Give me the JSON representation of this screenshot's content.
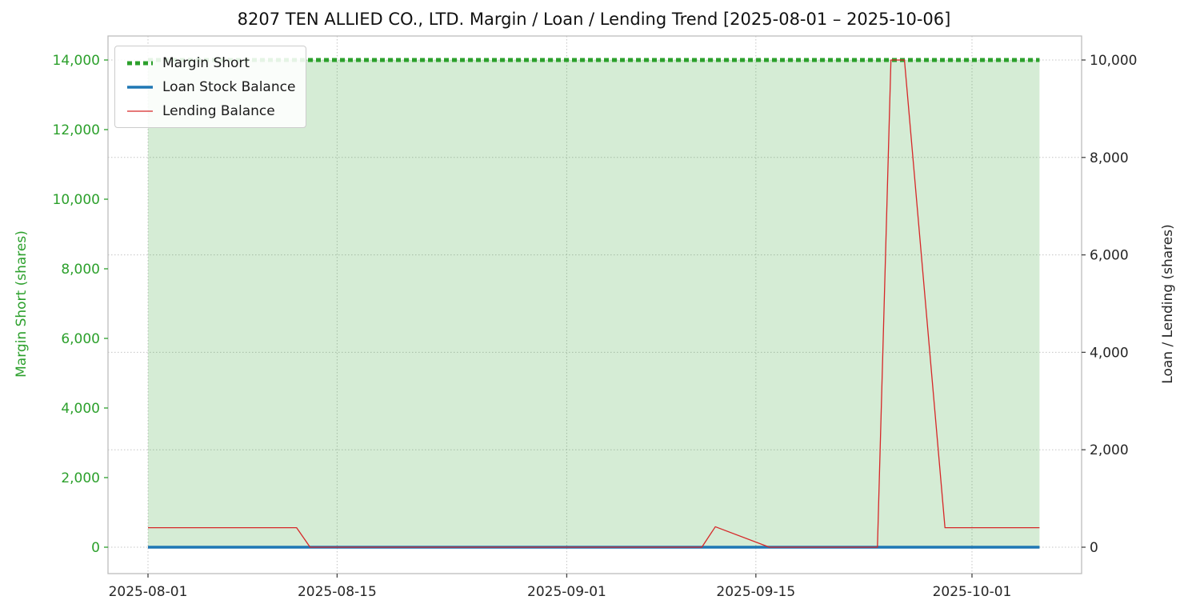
{
  "chart_data": {
    "type": "line",
    "title": "8207 TEN ALLIED CO., LTD. Margin / Loan / Lending Trend [2025-08-01 – 2025-10-06]",
    "x_start": "2025-08-01",
    "x_end": "2025-10-06",
    "x_ticks": [
      "2025-08-01",
      "2025-08-15",
      "2025-09-01",
      "2025-09-15",
      "2025-10-01"
    ],
    "grid": "dotted",
    "legend_position": "upper-left",
    "left_axis": {
      "label": "Margin Short (shares)",
      "color": "#2ca02c",
      "max": 14000,
      "ticks": [
        0,
        2000,
        4000,
        6000,
        8000,
        10000,
        12000,
        14000
      ]
    },
    "right_axis": {
      "label": "Loan / Lending (shares)",
      "color": "#262626",
      "max": 10000,
      "ticks": [
        0,
        2000,
        4000,
        6000,
        8000,
        10000
      ]
    },
    "series": [
      {
        "id": "margin-short",
        "name": "Margin Short",
        "axis": "left",
        "color": "#2ca02c",
        "width": 5,
        "dash": "6 4",
        "fill": true,
        "fill_color": "rgba(44,160,44,0.2)",
        "points": [
          [
            "2025-08-01",
            14000
          ],
          [
            "2025-10-06",
            14000
          ]
        ]
      },
      {
        "id": "loan-stock-balance",
        "name": "Loan Stock Balance",
        "axis": "right",
        "color": "#1f77b4",
        "width": 3.5,
        "points": [
          [
            "2025-08-01",
            0
          ],
          [
            "2025-10-06",
            0
          ]
        ]
      },
      {
        "id": "lending-balance",
        "name": "Lending Balance",
        "axis": "right",
        "color": "#d62728",
        "width": 1.3,
        "points": [
          [
            "2025-08-01",
            400
          ],
          [
            "2025-08-12",
            400
          ],
          [
            "2025-08-13",
            0
          ],
          [
            "2025-09-11",
            0
          ],
          [
            "2025-09-12",
            420
          ],
          [
            "2025-09-16",
            0
          ],
          [
            "2025-09-24",
            0
          ],
          [
            "2025-09-25",
            10000
          ],
          [
            "2025-09-26",
            10000
          ],
          [
            "2025-09-29",
            400
          ],
          [
            "2025-10-06",
            400
          ]
        ]
      }
    ]
  }
}
